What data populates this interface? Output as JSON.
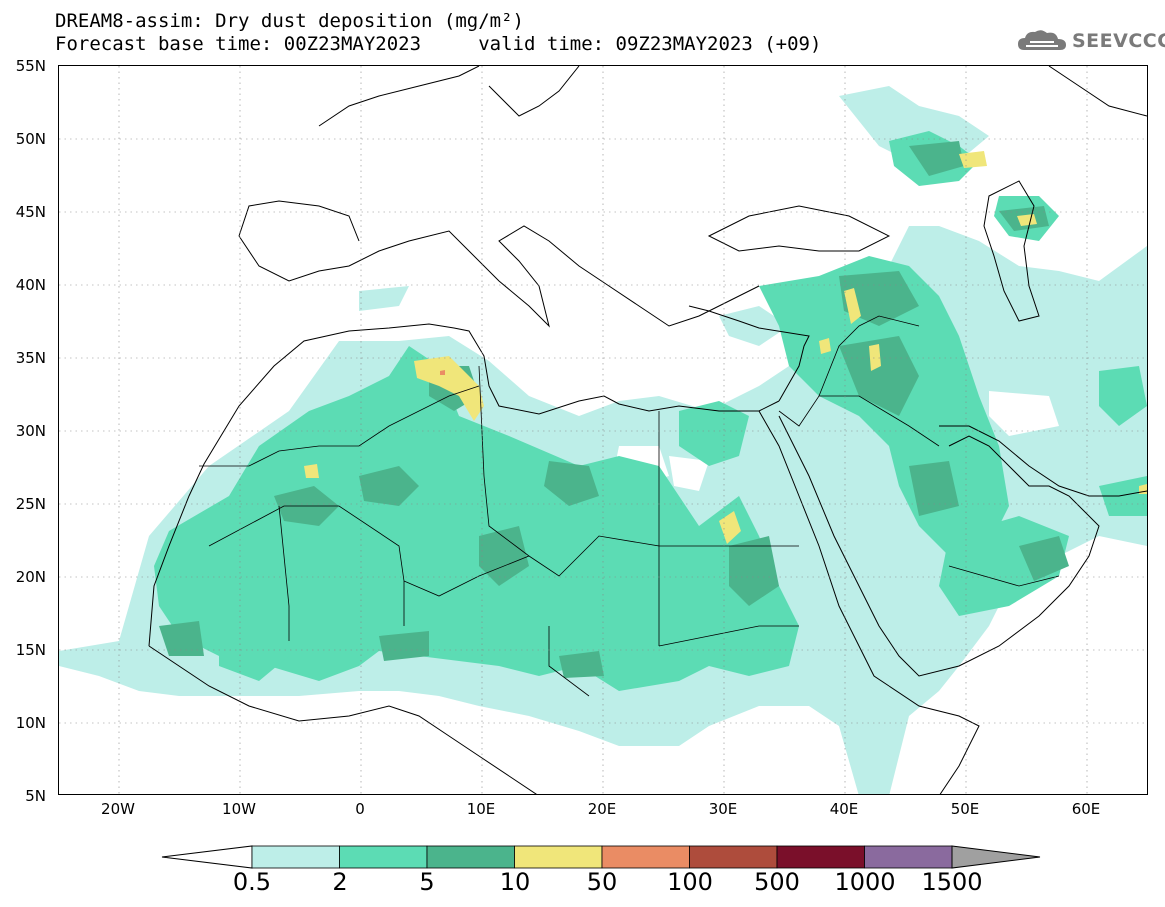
{
  "header": {
    "title_line1": "DREAM8-assim: Dry dust deposition (mg/m²)",
    "title_line2": "Forecast base time: 00Z23MAY2023     valid time: 09Z23MAY2023 (+09)"
  },
  "logo": {
    "text": "SEEVCCC",
    "icon": "cloud-icon"
  },
  "axes": {
    "lat_labels": [
      "55N",
      "50N",
      "45N",
      "40N",
      "35N",
      "30N",
      "25N",
      "20N",
      "15N",
      "10N",
      "5N"
    ],
    "lon_labels": [
      "20W",
      "10W",
      "0",
      "10E",
      "20E",
      "30E",
      "40E",
      "50E",
      "60E"
    ],
    "lat_range": [
      5,
      55
    ],
    "lon_range": [
      -25,
      65
    ],
    "grid": "dotted"
  },
  "legend": {
    "levels": [
      "0.5",
      "2",
      "5",
      "10",
      "50",
      "100",
      "500",
      "1000",
      "1500"
    ],
    "colors": [
      "#bdeee8",
      "#5cdcb4",
      "#4bb48c",
      "#f0e67a",
      "#ea8c64",
      "#ae4c3c",
      "#7a0f2a",
      "#8a6a9e"
    ],
    "under_color": "#ffffff",
    "over_color": "#a0a0a0"
  }
}
